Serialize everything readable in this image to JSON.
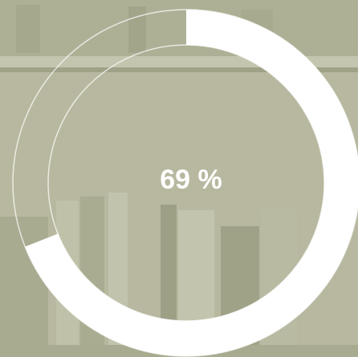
{
  "chart_data": {
    "type": "progress-ring",
    "values": [
      69
    ],
    "value_labels": [
      "69 %"
    ],
    "color": "#ffffff",
    "ylim": [
      0,
      100
    ]
  }
}
